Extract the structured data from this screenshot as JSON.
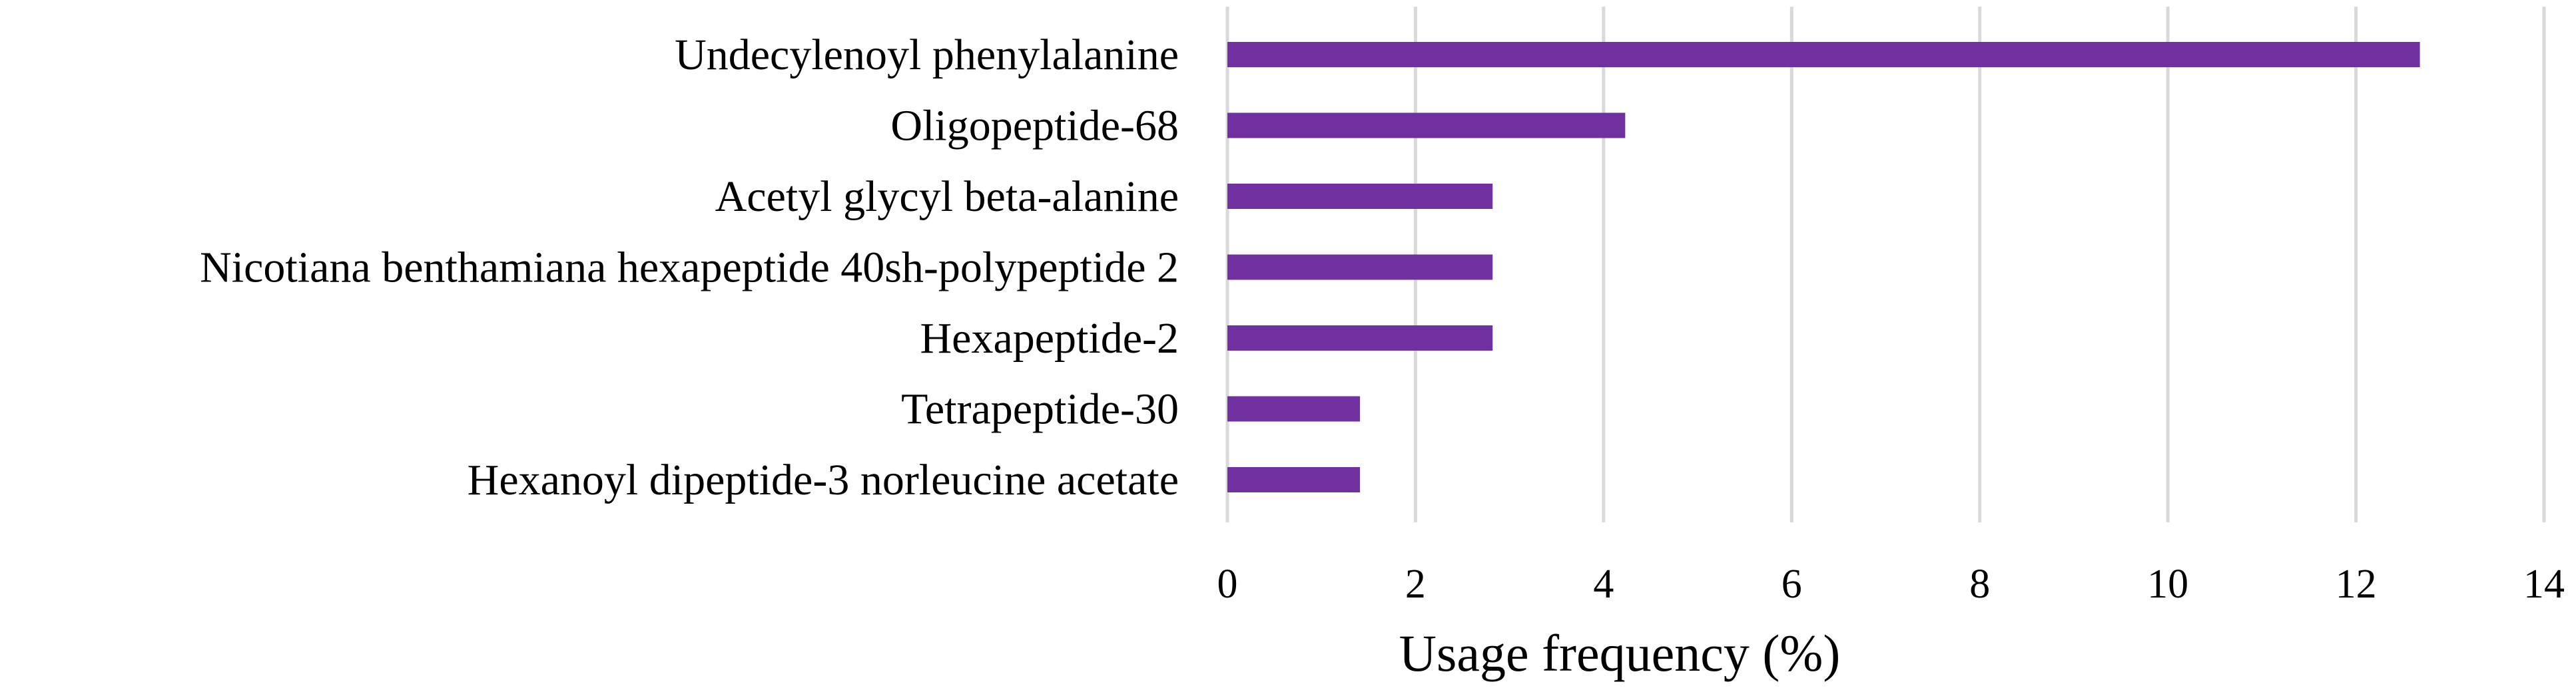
{
  "chart_data": {
    "type": "bar",
    "orientation": "horizontal",
    "categories": [
      "Undecylenoyl phenylalanine",
      "Oligopeptide-68",
      "Acetyl glycyl beta-alanine",
      "Nicotiana benthamiana hexapeptide 40sh-polypeptide 2",
      "Hexapeptide-2",
      "Tetrapeptide-30",
      "Hexanoyl dipeptide-3 norleucine acetate"
    ],
    "values": [
      12.68,
      4.23,
      2.82,
      2.82,
      2.82,
      1.41,
      1.41
    ],
    "xlabel": "Usage frequency (%)",
    "ylabel": "",
    "xlim": [
      0,
      14
    ],
    "xticks": [
      "0",
      "2",
      "4",
      "6",
      "8",
      "10",
      "12",
      "14"
    ],
    "grid": "vertical",
    "legend": "none",
    "colors": {
      "bar": "#7030a0",
      "grid": "#d9d9d9",
      "text": "#000000"
    }
  }
}
